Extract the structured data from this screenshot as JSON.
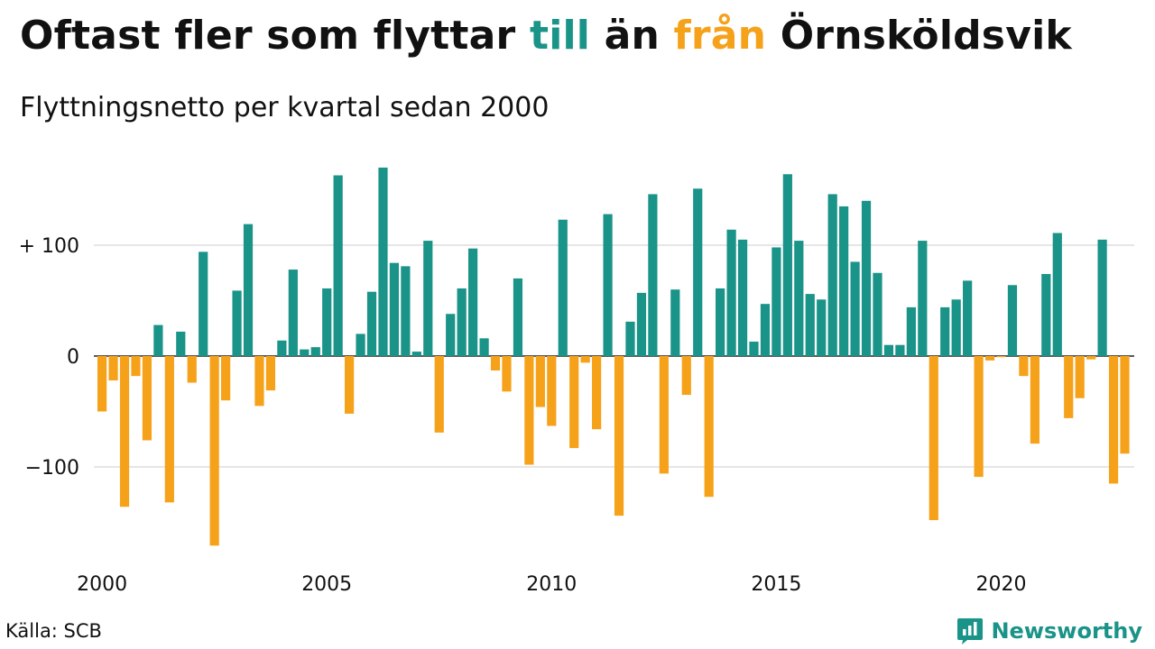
{
  "header": {
    "title_part1": "Oftast fler som flyttar ",
    "title_in": "till",
    "title_part2": " än ",
    "title_out": "från",
    "title_part3": " Örnsköldsvik",
    "subtitle": "Flyttningsnetto per kvartal sedan 2000"
  },
  "footer": {
    "source": "Källa: SCB",
    "brand": "Newsworthy"
  },
  "colors": {
    "positive": "#1a9388",
    "negative": "#f5a21a",
    "grid": "#dddddd"
  },
  "chart_data": {
    "type": "bar",
    "title": "Oftast fler som flyttar till än från Örnsköldsvik",
    "subtitle": "Flyttningsnetto per kvartal sedan 2000",
    "xlabel": "",
    "ylabel": "",
    "ylim": [
      -175,
      175
    ],
    "yticks": [
      {
        "value": 100,
        "label": "+ 100"
      },
      {
        "value": 0,
        "label": "0"
      },
      {
        "value": -100,
        "label": "−100"
      }
    ],
    "xticks": [
      {
        "year": 2000,
        "label": "2000"
      },
      {
        "year": 2005,
        "label": "2005"
      },
      {
        "year": 2010,
        "label": "2010"
      },
      {
        "year": 2015,
        "label": "2015"
      },
      {
        "year": 2020,
        "label": "2020"
      }
    ],
    "start_year": 2000,
    "grid": true,
    "values": [
      -50,
      -22,
      -136,
      -18,
      -76,
      28,
      -132,
      22,
      -24,
      94,
      -171,
      -40,
      59,
      119,
      -45,
      -31,
      14,
      78,
      6,
      8,
      61,
      163,
      -52,
      20,
      58,
      170,
      84,
      81,
      4,
      104,
      -69,
      38,
      61,
      97,
      16,
      -13,
      -32,
      70,
      -98,
      -46,
      -63,
      123,
      -83,
      -6,
      -66,
      128,
      -144,
      31,
      57,
      146,
      -106,
      60,
      -35,
      151,
      -127,
      61,
      114,
      105,
      13,
      47,
      98,
      164,
      104,
      56,
      51,
      146,
      135,
      85,
      140,
      75,
      10,
      10,
      44,
      104,
      -148,
      44,
      51,
      68,
      -109,
      -4,
      -1,
      64,
      -18,
      -79,
      74,
      111,
      -56,
      -38,
      -3,
      105,
      -115,
      -88
    ]
  }
}
